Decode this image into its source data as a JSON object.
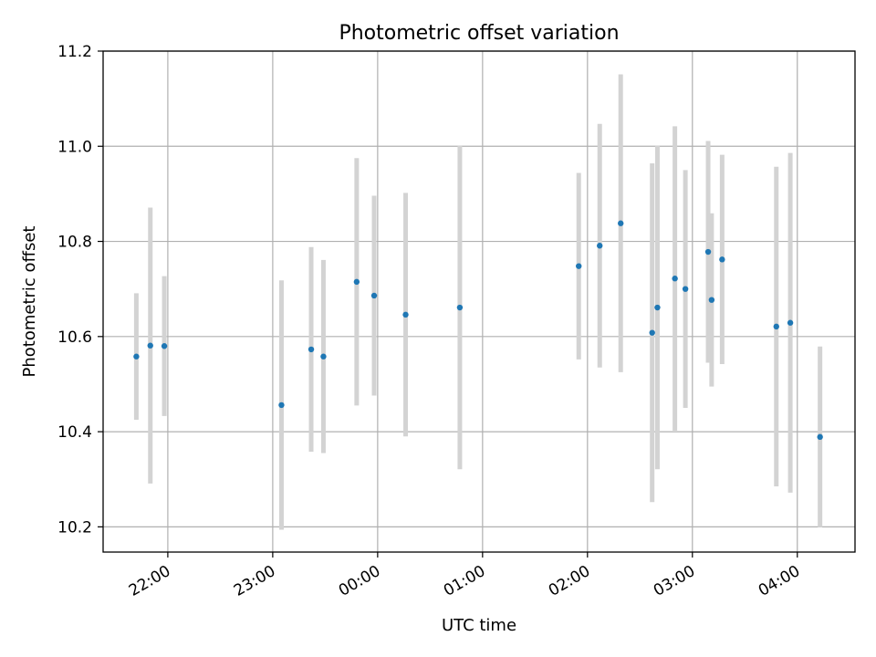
{
  "chart_data": {
    "type": "scatter",
    "title": "Photometric offset variation",
    "xlabel": "UTC time",
    "ylabel": "Photometric offset",
    "x_unit": "UTC time (HH:MM), times after midnight fall on the following day",
    "xlim": [
      "21:23",
      "04:33"
    ],
    "ylim": [
      10.147,
      11.2
    ],
    "grid": true,
    "x_ticks": [
      "22:00",
      "23:00",
      "00:00",
      "01:00",
      "02:00",
      "03:00",
      "04:00"
    ],
    "y_ticks": [
      10.2,
      10.4,
      10.6,
      10.8,
      11.0,
      11.2
    ],
    "y_tick_labels": [
      "10.2",
      "10.4",
      "10.6",
      "10.8",
      "11.0",
      "11.2"
    ],
    "colors": {
      "point": "#1f77b4",
      "errorbar": "#d3d3d3",
      "grid": "#b0b0b0",
      "axes": "#000000"
    },
    "series": [
      {
        "points": [
          {
            "x": "21:42",
            "y": 10.558,
            "yerr": 0.133
          },
          {
            "x": "21:50",
            "y": 10.581,
            "yerr": 0.29
          },
          {
            "x": "21:58",
            "y": 10.58,
            "yerr": 0.147
          },
          {
            "x": "23:05",
            "y": 10.456,
            "yerr": 0.262
          },
          {
            "x": "23:22",
            "y": 10.573,
            "yerr": 0.215
          },
          {
            "x": "23:29",
            "y": 10.558,
            "yerr": 0.203
          },
          {
            "x": "23:48",
            "y": 10.715,
            "yerr": 0.26
          },
          {
            "x": "23:58",
            "y": 10.686,
            "yerr": 0.21
          },
          {
            "x": "00:16",
            "y": 10.646,
            "yerr": 0.256
          },
          {
            "x": "00:47",
            "y": 10.661,
            "yerr": 0.34
          },
          {
            "x": "01:55",
            "y": 10.748,
            "yerr": 0.196
          },
          {
            "x": "02:07",
            "y": 10.791,
            "yerr": 0.256
          },
          {
            "x": "02:19",
            "y": 10.838,
            "yerr": 0.313
          },
          {
            "x": "02:37",
            "y": 10.608,
            "yerr": 0.356
          },
          {
            "x": "02:40",
            "y": 10.661,
            "yerr": 0.34
          },
          {
            "x": "02:50",
            "y": 10.722,
            "yerr": 0.32
          },
          {
            "x": "02:56",
            "y": 10.7,
            "yerr": 0.25
          },
          {
            "x": "03:09",
            "y": 10.778,
            "yerr": 0.233
          },
          {
            "x": "03:11",
            "y": 10.677,
            "yerr": 0.182
          },
          {
            "x": "03:17",
            "y": 10.762,
            "yerr": 0.22
          },
          {
            "x": "03:48",
            "y": 10.621,
            "yerr": 0.336
          },
          {
            "x": "03:56",
            "y": 10.629,
            "yerr": 0.357
          },
          {
            "x": "04:13",
            "y": 10.389,
            "yerr": 0.19
          }
        ]
      }
    ]
  }
}
